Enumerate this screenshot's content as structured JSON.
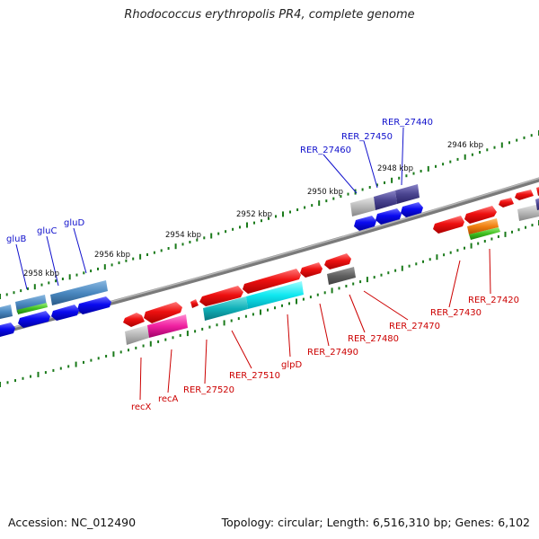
{
  "title": "Rhodococcus erythropolis PR4, complete genome",
  "footer": {
    "accession": "Accession: NC_012490",
    "topology": "Topology: circular; Length: 6,516,310 bp; Genes: 6,102"
  },
  "colors": {
    "forward_label": "#1010cc",
    "reverse_label": "#cc0000",
    "backbone": "#808080",
    "tick": "#1a7a1a"
  },
  "ruler_labels": [
    "2946 kbp",
    "2948 kbp",
    "2950 kbp",
    "2952 kbp",
    "2954 kbp",
    "2956 kbp",
    "2958 kbp"
  ],
  "forward_gene_labels": [
    "RER_27440",
    "RER_27450",
    "RER_27460",
    "gluD",
    "gluC",
    "gluB"
  ],
  "reverse_gene_labels": [
    "RER_27420",
    "RER_27430",
    "RER_27470",
    "RER_27480",
    "RER_27490",
    "glpD",
    "RER_27510",
    "RER_27520",
    "recA",
    "recX"
  ]
}
